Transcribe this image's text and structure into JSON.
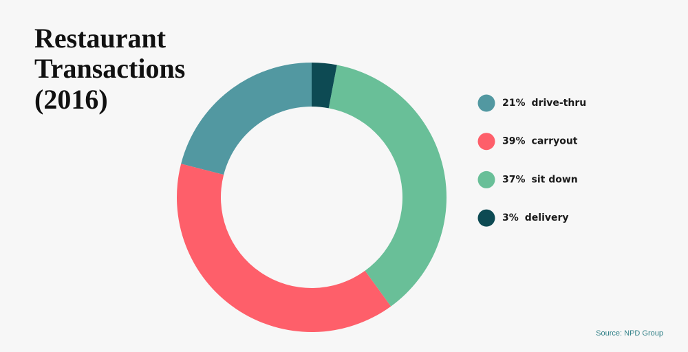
{
  "chart_data": {
    "type": "donut",
    "title": [
      "Restaurant",
      "Transactions",
      "(2016)"
    ],
    "categories": [
      "drive-thru",
      "carryout",
      "sit down",
      "delivery"
    ],
    "values": [
      21,
      39,
      37,
      3
    ],
    "value_labels": [
      "21%",
      "39%",
      "37%",
      "3%"
    ],
    "colors": [
      "#5298a1",
      "#fe5f6a",
      "#69bf98",
      "#0d4a53"
    ],
    "direction": "counterclockwise",
    "legend": "right",
    "source": "Source: NPD Group"
  }
}
